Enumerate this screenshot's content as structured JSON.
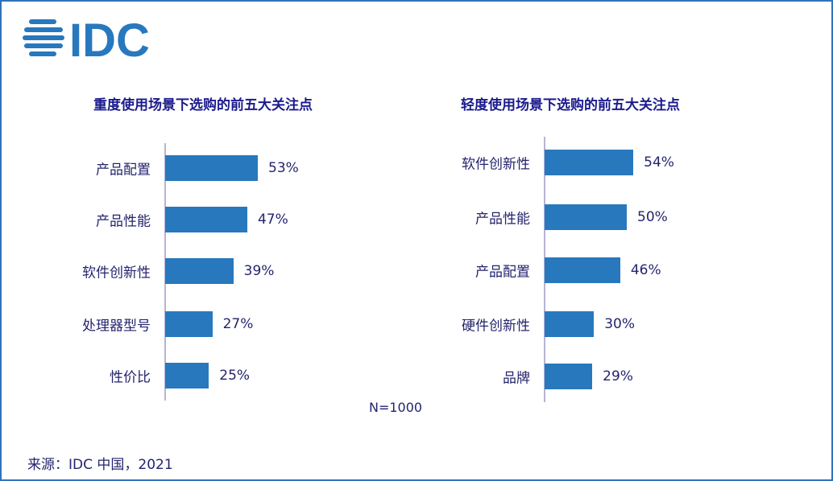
{
  "logo_text": "IDC",
  "colors": {
    "bar": "#2878be",
    "text": "#24246e",
    "title": "#1a1a8c",
    "frame": "#2e75b6"
  },
  "chart_data": [
    {
      "type": "bar",
      "orientation": "horizontal",
      "title": "重度使用场景下选购的前五大关注点",
      "categories": [
        "产品配置",
        "产品性能",
        "软件创新性",
        "处理器型号",
        "性价比"
      ],
      "values": [
        53,
        47,
        39,
        27,
        25
      ],
      "labels": [
        "53%",
        "47%",
        "39%",
        "27%",
        "25%"
      ],
      "xlim": [
        0,
        100
      ]
    },
    {
      "type": "bar",
      "orientation": "horizontal",
      "title": "轻度使用场景下选购的前五大关注点",
      "categories": [
        "软件创新性",
        "产品性能",
        "产品配置",
        "硬件创新性",
        "品牌"
      ],
      "values": [
        54,
        50,
        46,
        30,
        29
      ],
      "labels": [
        "54%",
        "50%",
        "46%",
        "30%",
        "29%"
      ],
      "xlim": [
        0,
        100
      ]
    }
  ],
  "note": "N=1000",
  "source": "来源：IDC 中国，2021"
}
